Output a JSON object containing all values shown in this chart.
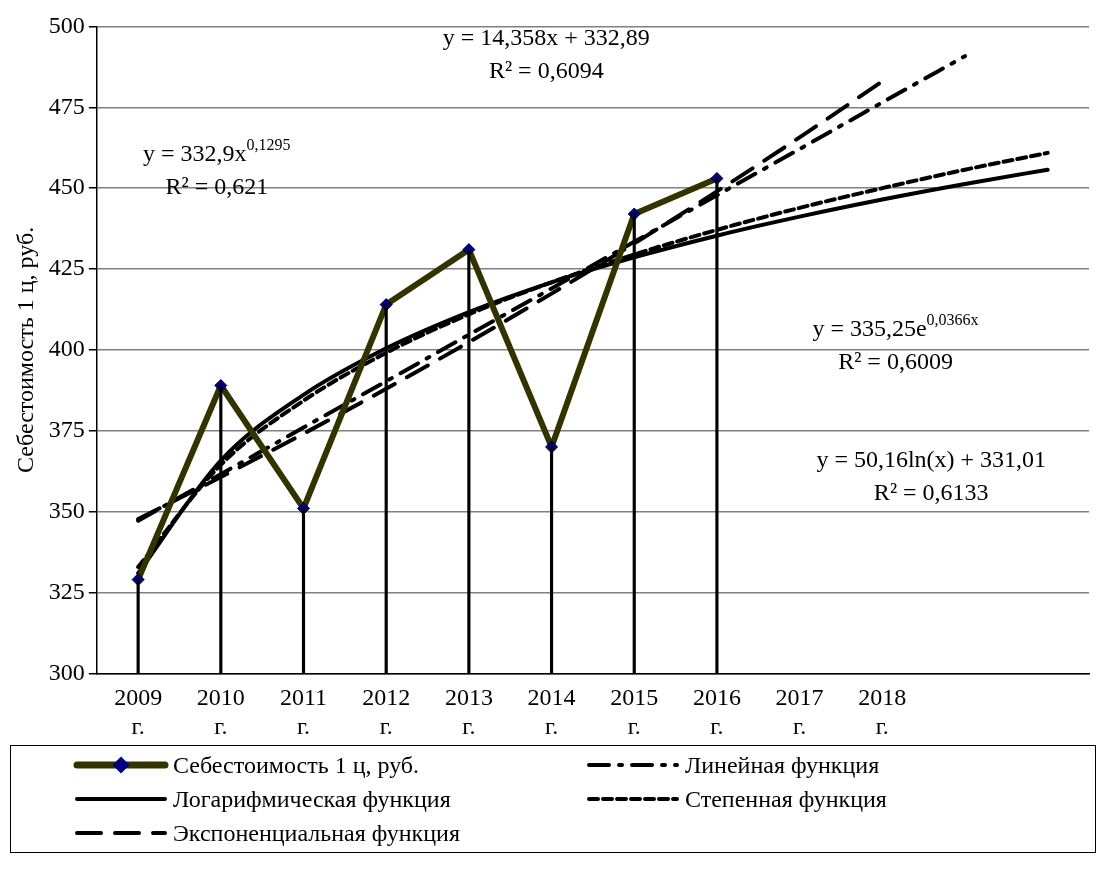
{
  "chart_data": {
    "type": "line",
    "ylabel": "Себестоимость 1 ц, руб.",
    "categories": [
      "2009 г.",
      "2010 г.",
      "2011 г.",
      "2012 г.",
      "2013 г.",
      "2014 г.",
      "2015 г.",
      "2016 г.",
      "2017 г.",
      "2018 г.",
      null,
      null
    ],
    "ylim": [
      300,
      500
    ],
    "yticks": [
      300,
      325,
      350,
      375,
      400,
      425,
      450,
      475,
      500
    ],
    "grid": "y",
    "legend": "bottom",
    "series": [
      {
        "name": "Себестоимость 1 ц, руб.",
        "color": "#333300",
        "marker": "diamond",
        "line_style": "solid",
        "values": [
          329,
          389,
          351,
          414,
          431,
          370,
          442,
          453,
          null,
          null,
          null,
          null
        ]
      },
      {
        "type": "bar",
        "color": "#000000",
        "values": [
          329,
          389,
          351,
          414,
          431,
          370,
          442,
          453,
          null,
          null,
          null,
          null
        ]
      },
      {
        "name": "Линейная функция",
        "color": "#000000",
        "marker": "none",
        "line_style": "dashdot",
        "values": [
          347.2,
          361.6,
          376.0,
          390.3,
          404.7,
          419.0,
          433.4,
          447.8,
          462.1,
          476.5,
          490.8,
          null
        ]
      },
      {
        "name": "Логарифмическая функция",
        "color": "#000000",
        "marker": "none",
        "line_style": "solid",
        "values": [
          331.0,
          365.8,
          386.1,
          400.5,
          411.7,
          420.9,
          428.6,
          435.3,
          441.2,
          446.5,
          451.3,
          455.7
        ]
      },
      {
        "name": "Степенная функция",
        "color": "#000000",
        "marker": "none",
        "line_style": "dashed",
        "values": [
          332.9,
          364.5,
          384.3,
          399.1,
          411.0,
          420.9,
          429.5,
          437.1,
          443.9,
          450.0,
          455.7,
          460.9
        ]
      },
      {
        "name": "Экспоненциальная функция",
        "color": "#000000",
        "marker": "none",
        "line_style": "longdash",
        "values": [
          347.7,
          360.7,
          374.1,
          388.0,
          402.4,
          417.4,
          432.9,
          449.0,
          465.7,
          483.0,
          null,
          null
        ]
      }
    ],
    "annotations": [
      "y = 14,358x + 332,89\nR² = 0,6094",
      "y = 332,9x$^{0,1295}$\nR² = 0,621",
      "y = 335,25e$^{0,0366x}$\nR² = 0,6009",
      "y = 50,16ln(x) + 331,01\nR² = 0,6133"
    ]
  }
}
